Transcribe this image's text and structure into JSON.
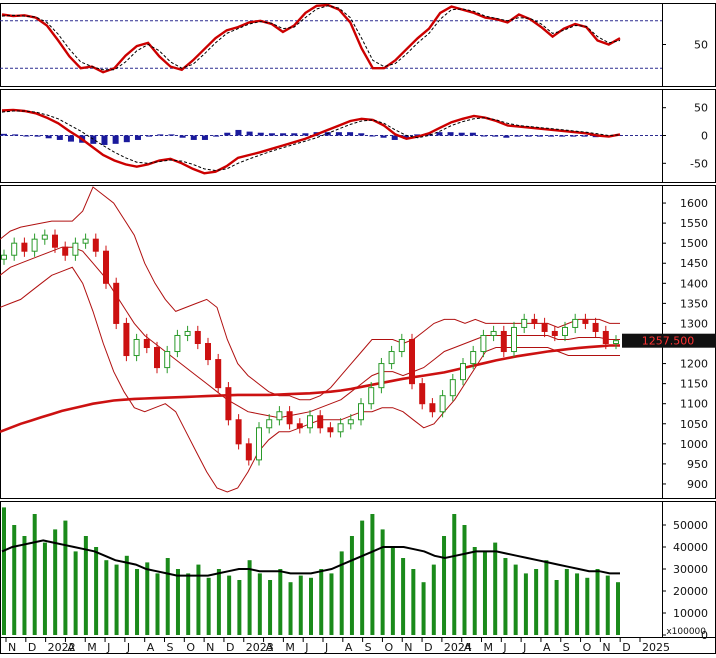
{
  "chart_data": [
    {
      "type": "line",
      "panel": "stochastic",
      "y_ticks": [
        50
      ],
      "ylim": [
        0,
        100
      ],
      "reference_lines": [
        80,
        20
      ],
      "series": [
        {
          "role": "oscillator",
          "color": "#cc0000",
          "values": [
            88,
            86,
            87,
            84,
            74,
            55,
            35,
            20,
            22,
            15,
            20,
            36,
            48,
            52,
            35,
            22,
            18,
            30,
            44,
            58,
            68,
            72,
            78,
            80,
            76,
            66,
            74,
            90,
            99,
            100,
            94,
            78,
            45,
            20,
            20,
            30,
            44,
            58,
            70,
            90,
            98,
            94,
            90,
            84,
            82,
            78,
            88,
            82,
            72,
            60,
            70,
            76,
            72,
            55,
            50,
            58
          ]
        },
        {
          "role": "signal",
          "color": "#000000",
          "values": [
            86,
            87,
            86,
            85,
            78,
            63,
            44,
            28,
            22,
            18,
            18,
            28,
            42,
            50,
            42,
            28,
            20,
            25,
            38,
            52,
            64,
            70,
            76,
            79,
            77,
            70,
            72,
            84,
            95,
            99,
            96,
            84,
            58,
            30,
            22,
            26,
            38,
            52,
            64,
            82,
            94,
            95,
            92,
            86,
            83,
            80,
            84,
            83,
            76,
            64,
            68,
            74,
            73,
            60,
            52,
            55
          ]
        }
      ]
    },
    {
      "type": "bar",
      "panel": "macd",
      "y_ticks": [
        50,
        0,
        -50
      ],
      "ylim": [
        -80,
        80
      ],
      "series": [
        {
          "role": "macd",
          "color": "#cc0000",
          "values": [
            45,
            46,
            44,
            40,
            32,
            22,
            8,
            -5,
            -20,
            -35,
            -45,
            -52,
            -56,
            -52,
            -45,
            -42,
            -50,
            -60,
            -68,
            -65,
            -55,
            -40,
            -35,
            -30,
            -24,
            -18,
            -12,
            -6,
            2,
            10,
            18,
            26,
            30,
            28,
            18,
            2,
            -6,
            -2,
            4,
            14,
            24,
            30,
            35,
            32,
            26,
            18,
            16,
            14,
            12,
            10,
            8,
            6,
            4,
            0,
            -2,
            2
          ]
        },
        {
          "role": "signal",
          "color": "#000000",
          "values": [
            42,
            44,
            44,
            42,
            37,
            30,
            19,
            8,
            -5,
            -18,
            -30,
            -40,
            -48,
            -50,
            -47,
            -44,
            -46,
            -52,
            -60,
            -63,
            -60,
            -50,
            -42,
            -35,
            -28,
            -22,
            -16,
            -10,
            -4,
            4,
            12,
            20,
            26,
            28,
            22,
            10,
            0,
            -4,
            0,
            8,
            18,
            25,
            30,
            32,
            28,
            22,
            18,
            16,
            14,
            12,
            10,
            8,
            6,
            3,
            0,
            1
          ]
        },
        {
          "role": "histogram",
          "color": "#1a1a9c",
          "values": [
            3,
            2,
            0,
            -2,
            -5,
            -8,
            -11,
            -13,
            -15,
            -17,
            -15,
            -12,
            -8,
            -2,
            2,
            2,
            -4,
            -8,
            -8,
            -2,
            5,
            10,
            7,
            5,
            4,
            4,
            4,
            4,
            6,
            6,
            6,
            6,
            4,
            0,
            -4,
            -8,
            -6,
            2,
            4,
            6,
            6,
            5,
            5,
            0,
            -2,
            -4,
            -2,
            -2,
            -2,
            -2,
            -2,
            -2,
            -2,
            -3,
            -2,
            1
          ]
        }
      ]
    },
    {
      "type": "line",
      "panel": "price",
      "y_ticks": [
        1600,
        1550,
        1500,
        1450,
        1400,
        1350,
        1300,
        1250,
        1200,
        1150,
        1100,
        1050,
        1000,
        950,
        900
      ],
      "ylim": [
        870,
        1640
      ],
      "last_price_label": "1257.500",
      "series": [
        {
          "role": "close",
          "color": "#2a9a2a",
          "values": [
            1470,
            1500,
            1480,
            1510,
            1520,
            1490,
            1470,
            1500,
            1510,
            1480,
            1400,
            1300,
            1220,
            1260,
            1240,
            1190,
            1230,
            1270,
            1280,
            1250,
            1210,
            1140,
            1060,
            1000,
            960,
            1040,
            1060,
            1080,
            1050,
            1040,
            1070,
            1040,
            1030,
            1050,
            1060,
            1100,
            1140,
            1200,
            1230,
            1260,
            1150,
            1100,
            1080,
            1120,
            1160,
            1200,
            1230,
            1270,
            1280,
            1230,
            1290,
            1310,
            1300,
            1280,
            1270,
            1290,
            1310,
            1300,
            1280,
            1250,
            1257
          ]
        },
        {
          "role": "upper-band",
          "color": "#b01010",
          "values": [
            1510,
            1530,
            1540,
            1545,
            1550,
            1555,
            1555,
            1555,
            1580,
            1640,
            1620,
            1600,
            1560,
            1520,
            1450,
            1400,
            1360,
            1330,
            1340,
            1350,
            1360,
            1340,
            1260,
            1200,
            1170,
            1150,
            1130,
            1120,
            1120,
            1110,
            1110,
            1120,
            1140,
            1170,
            1200,
            1230,
            1260,
            1260,
            1260,
            1250,
            1260,
            1280,
            1300,
            1310,
            1310,
            1300,
            1310,
            1300,
            1300,
            1300,
            1300,
            1300,
            1300,
            1300,
            1290,
            1300,
            1310,
            1310,
            1310,
            1300,
            1300
          ]
        },
        {
          "role": "middle-band",
          "color": "#b01010",
          "values": [
            1420,
            1440,
            1450,
            1460,
            1470,
            1480,
            1490,
            1490,
            1480,
            1450,
            1420,
            1380,
            1340,
            1300,
            1270,
            1250,
            1230,
            1210,
            1190,
            1170,
            1150,
            1130,
            1110,
            1095,
            1080,
            1075,
            1070,
            1065,
            1070,
            1075,
            1080,
            1090,
            1100,
            1110,
            1130,
            1150,
            1170,
            1180,
            1180,
            1170,
            1180,
            1190,
            1210,
            1230,
            1240,
            1250,
            1260,
            1270,
            1270,
            1270,
            1270,
            1270,
            1270,
            1270,
            1260,
            1260,
            1265,
            1265,
            1265,
            1260,
            1260
          ]
        },
        {
          "role": "lower-band",
          "color": "#b01010",
          "values": [
            1340,
            1350,
            1360,
            1380,
            1400,
            1420,
            1430,
            1440,
            1400,
            1330,
            1250,
            1180,
            1130,
            1090,
            1080,
            1090,
            1100,
            1080,
            1030,
            980,
            930,
            890,
            880,
            890,
            930,
            980,
            1010,
            1030,
            1030,
            1040,
            1050,
            1060,
            1060,
            1060,
            1070,
            1080,
            1080,
            1090,
            1090,
            1080,
            1060,
            1040,
            1050,
            1080,
            1110,
            1150,
            1190,
            1230,
            1240,
            1240,
            1240,
            1240,
            1240,
            1240,
            1230,
            1220,
            1220,
            1220,
            1220,
            1220,
            1220
          ]
        },
        {
          "role": "long-moving-average",
          "color": "#cc1111",
          "values": [
            1030,
            1040,
            1050,
            1058,
            1066,
            1074,
            1082,
            1088,
            1094,
            1100,
            1104,
            1108,
            1110,
            1112,
            1113,
            1114,
            1115,
            1116,
            1117,
            1118,
            1119,
            1120,
            1121,
            1122,
            1122,
            1122,
            1122,
            1123,
            1124,
            1125,
            1126,
            1128,
            1130,
            1133,
            1137,
            1142,
            1147,
            1152,
            1157,
            1162,
            1166,
            1170,
            1174,
            1178,
            1184,
            1190,
            1196,
            1202,
            1208,
            1213,
            1218,
            1222,
            1226,
            1230,
            1233,
            1236,
            1239,
            1241,
            1243,
            1245,
            1245
          ]
        }
      ]
    },
    {
      "type": "bar",
      "panel": "volume",
      "y_ticks": [
        50000,
        40000,
        30000,
        20000,
        10000,
        0
      ],
      "ylim": [
        0,
        60000
      ],
      "unit_label": "x100000",
      "series": [
        {
          "role": "volume",
          "color": "#1a8a1a",
          "values": [
            58000,
            50000,
            45000,
            55000,
            42000,
            48000,
            52000,
            38000,
            45000,
            40000,
            34000,
            32000,
            36000,
            30000,
            33000,
            28000,
            35000,
            30000,
            28000,
            32000,
            26000,
            30000,
            27000,
            25000,
            34000,
            28000,
            25000,
            30000,
            24000,
            27000,
            26000,
            30000,
            28000,
            38000,
            45000,
            52000,
            55000,
            48000,
            40000,
            35000,
            30000,
            24000,
            32000,
            45000,
            55000,
            50000,
            40000,
            38000,
            42000,
            35000,
            32000,
            28000,
            30000,
            34000,
            25000,
            30000,
            28000,
            26000,
            30000,
            27000,
            24000
          ]
        },
        {
          "role": "volume-average",
          "color": "#000000",
          "values": [
            38000,
            40000,
            41000,
            42000,
            43000,
            42000,
            41000,
            40000,
            39000,
            38000,
            36000,
            34000,
            33000,
            32000,
            30000,
            29000,
            28000,
            27000,
            27000,
            27000,
            27000,
            28000,
            29000,
            30000,
            30000,
            29000,
            29000,
            29000,
            28000,
            28000,
            28000,
            29000,
            30000,
            32000,
            34000,
            36000,
            38000,
            40000,
            40000,
            40000,
            39000,
            38000,
            36000,
            35000,
            36000,
            37000,
            38000,
            38000,
            38000,
            37000,
            36000,
            35000,
            34000,
            33000,
            32000,
            31000,
            30000,
            29000,
            29000,
            28000,
            28000
          ]
        }
      ]
    },
    {
      "type": "axis",
      "panel": "time-axis",
      "categories": [
        "N",
        "D",
        "2022",
        "A",
        "M",
        "J",
        "J",
        "A",
        "S",
        "O",
        "N",
        "D",
        "2023",
        "A",
        "M",
        "J",
        "J",
        "A",
        "S",
        "O",
        "N",
        "D",
        "2024",
        "A",
        "M",
        "J",
        "J",
        "A",
        "S",
        "O",
        "N",
        "D",
        "2025"
      ]
    }
  ]
}
